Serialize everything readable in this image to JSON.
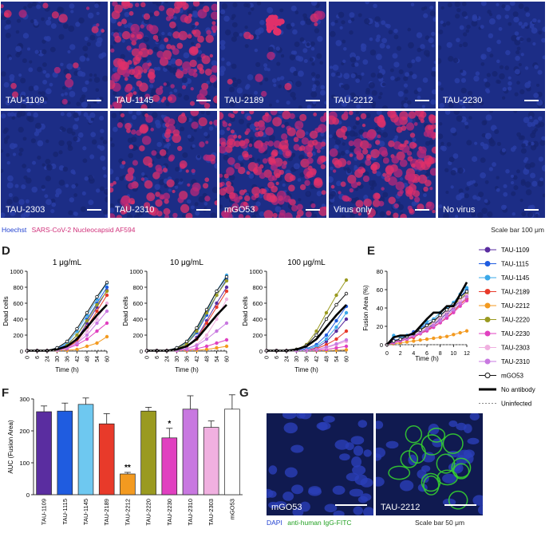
{
  "top_panels": [
    {
      "label": "TAU-1109",
      "infection": 0.08,
      "blob": [
        150,
        30
      ]
    },
    {
      "label": "TAU-1145",
      "infection": 0.75
    },
    {
      "label": "TAU-2189",
      "infection": 0.05,
      "blob": [
        70,
        30
      ]
    },
    {
      "label": "TAU-2212",
      "infection": 0.0
    },
    {
      "label": "TAU-2230",
      "infection": 0.0
    },
    {
      "label": "TAU-2303",
      "infection": 0.0
    },
    {
      "label": "TAU-2310",
      "infection": 0.45
    },
    {
      "label": "mGO53",
      "infection": 0.9
    },
    {
      "label": "Virus only",
      "infection": 0.8
    },
    {
      "label": "No virus",
      "infection": 0.0
    }
  ],
  "legend_top": {
    "hoechst": "Hoechst",
    "nucleocapsid": "SARS-CoV-2 Nucleocapsid AF594",
    "scalebar": "Scale bar 100 μm"
  },
  "colors": {
    "blue_bg": "#1c2d86",
    "red": "#e0306a",
    "legend_blue": "#2040d0",
    "legend_pink": "#d0307a",
    "fitc": "#35d030"
  },
  "panel_letters": {
    "D": "D",
    "E": "E",
    "F": "F",
    "G": "G"
  },
  "legend_series": [
    {
      "name": "TAU-1109",
      "color": "#5a2da0",
      "marker": "filled"
    },
    {
      "name": "TAU-1115",
      "color": "#1f5ce0",
      "marker": "filled"
    },
    {
      "name": "TAU-1145",
      "color": "#3ba8e8",
      "marker": "filled"
    },
    {
      "name": "TAU-2189",
      "color": "#e83a2a",
      "marker": "filled"
    },
    {
      "name": "TAU-2212",
      "color": "#f39a20",
      "marker": "filled"
    },
    {
      "name": "TAU-2220",
      "color": "#9a9a20",
      "marker": "filled"
    },
    {
      "name": "TAU-2230",
      "color": "#e040c0",
      "marker": "filled"
    },
    {
      "name": "TAU-2303",
      "color": "#f0b0e0",
      "marker": "filled"
    },
    {
      "name": "TAU-2310",
      "color": "#c878e0",
      "marker": "filled"
    },
    {
      "name": "mGO53",
      "color": "#111111",
      "marker": "open"
    },
    {
      "name": "No antibody",
      "color": "#000000",
      "marker": "thick"
    },
    {
      "name": "Uninfected",
      "color": "#888888",
      "marker": "dashed"
    }
  ],
  "chart_data": [
    {
      "type": "line",
      "title": "1 μg/mL",
      "xlabel": "Time (h)",
      "ylabel": "Dead cells",
      "ylim": [
        0,
        1000
      ],
      "yticks": [
        0,
        200,
        400,
        600,
        800,
        1000
      ],
      "xticks": [
        "0",
        "6",
        "24",
        "30",
        "36",
        "42",
        "48",
        "54",
        "60"
      ],
      "series": [
        {
          "name": "TAU-1109",
          "values": [
            5,
            5,
            5,
            20,
            60,
            150,
            350,
            550,
            760
          ]
        },
        {
          "name": "TAU-1115",
          "values": [
            5,
            5,
            5,
            30,
            80,
            200,
            400,
            600,
            800
          ]
        },
        {
          "name": "TAU-1145",
          "values": [
            5,
            5,
            5,
            40,
            100,
            250,
            450,
            650,
            850
          ]
        },
        {
          "name": "TAU-2189",
          "values": [
            5,
            5,
            5,
            15,
            50,
            120,
            300,
            500,
            700
          ]
        },
        {
          "name": "TAU-2212",
          "values": [
            5,
            5,
            5,
            5,
            10,
            20,
            60,
            100,
            180
          ]
        },
        {
          "name": "TAU-2220",
          "values": [
            5,
            5,
            5,
            20,
            70,
            200,
            380,
            580,
            750
          ]
        },
        {
          "name": "TAU-2230",
          "values": [
            5,
            5,
            5,
            10,
            30,
            80,
            150,
            250,
            350
          ]
        },
        {
          "name": "TAU-2303",
          "values": [
            5,
            5,
            5,
            10,
            40,
            100,
            250,
            400,
            600
          ]
        },
        {
          "name": "TAU-2310",
          "values": [
            5,
            5,
            5,
            15,
            40,
            100,
            200,
            350,
            500
          ]
        },
        {
          "name": "mGO53",
          "values": [
            5,
            5,
            5,
            40,
            120,
            280,
            480,
            680,
            860
          ]
        },
        {
          "name": "No antibody",
          "values": [
            5,
            5,
            5,
            20,
            60,
            150,
            300,
            450,
            580
          ]
        },
        {
          "name": "Uninfected",
          "values": [
            5,
            5,
            5,
            5,
            5,
            5,
            5,
            10,
            10
          ]
        }
      ]
    },
    {
      "type": "line",
      "title": "10 μg/mL",
      "xlabel": "Time (h)",
      "ylabel": "Dead cells",
      "ylim": [
        0,
        1000
      ],
      "yticks": [
        0,
        200,
        400,
        600,
        800,
        1000
      ],
      "xticks": [
        "0",
        "6",
        "24",
        "30",
        "36",
        "42",
        "48",
        "54",
        "60"
      ],
      "series": [
        {
          "name": "TAU-1109",
          "values": [
            5,
            5,
            5,
            20,
            60,
            170,
            380,
            600,
            800
          ]
        },
        {
          "name": "TAU-1115",
          "values": [
            5,
            5,
            5,
            30,
            90,
            230,
            450,
            700,
            900
          ]
        },
        {
          "name": "TAU-1145",
          "values": [
            5,
            5,
            5,
            40,
            110,
            270,
            500,
            750,
            950
          ]
        },
        {
          "name": "TAU-2189",
          "values": [
            5,
            5,
            5,
            20,
            60,
            150,
            350,
            550,
            750
          ]
        },
        {
          "name": "TAU-2212",
          "values": [
            5,
            5,
            5,
            5,
            5,
            10,
            20,
            40,
            60
          ]
        },
        {
          "name": "TAU-2220",
          "values": [
            5,
            5,
            5,
            30,
            90,
            250,
            480,
            700,
            880
          ]
        },
        {
          "name": "TAU-2230",
          "values": [
            5,
            5,
            5,
            5,
            15,
            30,
            60,
            100,
            140
          ]
        },
        {
          "name": "TAU-2303",
          "values": [
            5,
            5,
            5,
            10,
            30,
            80,
            200,
            400,
            650
          ]
        },
        {
          "name": "TAU-2310",
          "values": [
            5,
            5,
            5,
            10,
            30,
            70,
            150,
            250,
            350
          ]
        },
        {
          "name": "mGO53",
          "values": [
            5,
            5,
            5,
            40,
            120,
            290,
            520,
            750,
            930
          ]
        },
        {
          "name": "No antibody",
          "values": [
            5,
            5,
            5,
            20,
            60,
            150,
            300,
            450,
            580
          ]
        },
        {
          "name": "Uninfected",
          "values": [
            5,
            5,
            5,
            5,
            5,
            5,
            5,
            10,
            10
          ]
        }
      ]
    },
    {
      "type": "line",
      "title": "100 μg/mL",
      "xlabel": "Time (h)",
      "ylabel": "Dead cells",
      "ylim": [
        0,
        1000
      ],
      "yticks": [
        0,
        200,
        400,
        600,
        800,
        1000
      ],
      "xticks": [
        "0",
        "6",
        "24",
        "30",
        "36",
        "42",
        "48",
        "54",
        "60"
      ],
      "series": [
        {
          "name": "TAU-1109",
          "values": [
            5,
            5,
            5,
            5,
            10,
            40,
            120,
            250,
            400
          ]
        },
        {
          "name": "TAU-1115",
          "values": [
            5,
            5,
            5,
            10,
            30,
            80,
            200,
            380,
            560
          ]
        },
        {
          "name": "TAU-1145",
          "values": [
            5,
            5,
            5,
            5,
            20,
            60,
            150,
            300,
            480
          ]
        },
        {
          "name": "TAU-2189",
          "values": [
            5,
            5,
            5,
            5,
            10,
            30,
            80,
            150,
            250
          ]
        },
        {
          "name": "TAU-2212",
          "values": [
            5,
            5,
            5,
            5,
            5,
            5,
            5,
            10,
            15
          ]
        },
        {
          "name": "TAU-2220",
          "values": [
            5,
            5,
            5,
            20,
            80,
            250,
            480,
            700,
            890
          ]
        },
        {
          "name": "TAU-2230",
          "values": [
            5,
            5,
            5,
            5,
            5,
            10,
            20,
            40,
            60
          ]
        },
        {
          "name": "TAU-2303",
          "values": [
            5,
            5,
            5,
            5,
            10,
            20,
            40,
            80,
            120
          ]
        },
        {
          "name": "TAU-2310",
          "values": [
            5,
            5,
            5,
            5,
            10,
            20,
            50,
            90,
            140
          ]
        },
        {
          "name": "mGO53",
          "values": [
            5,
            5,
            5,
            20,
            70,
            200,
            400,
            580,
            720
          ]
        },
        {
          "name": "No antibody",
          "values": [
            5,
            5,
            5,
            20,
            60,
            150,
            300,
            450,
            580
          ]
        },
        {
          "name": "Uninfected",
          "values": [
            5,
            5,
            5,
            5,
            5,
            5,
            5,
            10,
            10
          ]
        }
      ]
    },
    {
      "type": "line",
      "title": "",
      "xlabel": "Time (h)",
      "ylabel": "Fusion Area (%)",
      "ylim": [
        0,
        80
      ],
      "yticks": [
        0,
        20,
        40,
        60,
        80
      ],
      "xticks": [
        "0",
        "2",
        "4",
        "6",
        "8",
        "10",
        "12"
      ],
      "x": [
        0,
        1,
        2,
        3,
        4,
        5,
        6,
        7,
        8,
        9,
        10,
        11,
        12
      ],
      "series": [
        {
          "name": "TAU-1109",
          "values": [
            0,
            3,
            5,
            8,
            10,
            14,
            18,
            22,
            28,
            34,
            40,
            48,
            55
          ]
        },
        {
          "name": "TAU-1115",
          "values": [
            0,
            5,
            6,
            10,
            14,
            18,
            22,
            26,
            32,
            38,
            44,
            52,
            60
          ]
        },
        {
          "name": "TAU-1145",
          "values": [
            0,
            10,
            8,
            10,
            12,
            18,
            25,
            28,
            35,
            40,
            46,
            55,
            62
          ]
        },
        {
          "name": "TAU-2189",
          "values": [
            0,
            2,
            4,
            6,
            8,
            12,
            16,
            20,
            24,
            30,
            36,
            44,
            50
          ]
        },
        {
          "name": "TAU-2212",
          "values": [
            0,
            1,
            2,
            3,
            4,
            5,
            6,
            7,
            8,
            9,
            11,
            13,
            15
          ]
        },
        {
          "name": "TAU-2220",
          "values": [
            0,
            3,
            6,
            9,
            12,
            16,
            20,
            25,
            30,
            36,
            42,
            50,
            56
          ]
        },
        {
          "name": "TAU-2230",
          "values": [
            0,
            2,
            4,
            6,
            9,
            12,
            15,
            19,
            24,
            29,
            35,
            42,
            48
          ]
        },
        {
          "name": "TAU-2303",
          "values": [
            0,
            4,
            6,
            8,
            10,
            14,
            18,
            24,
            30,
            36,
            42,
            48,
            54
          ]
        },
        {
          "name": "TAU-2310",
          "values": [
            0,
            3,
            5,
            7,
            10,
            13,
            17,
            21,
            26,
            32,
            38,
            45,
            52
          ]
        },
        {
          "name": "mGO53",
          "values": [
            0,
            4,
            6,
            9,
            12,
            16,
            21,
            26,
            32,
            38,
            44,
            52,
            58
          ]
        },
        {
          "name": "No antibody",
          "values": [
            0,
            8,
            10,
            10,
            12,
            20,
            28,
            35,
            35,
            42,
            42,
            55,
            68
          ]
        },
        {
          "name": "Uninfected",
          "values": [
            0,
            0,
            0,
            0,
            0,
            0,
            0,
            0,
            0,
            0,
            0,
            0,
            0
          ]
        }
      ]
    },
    {
      "type": "bar",
      "title": "",
      "xlabel": "",
      "ylabel": "AUC (Fusion Area)",
      "ylim": [
        0,
        300
      ],
      "yticks": [
        0,
        100,
        200,
        300
      ],
      "categories": [
        "TAU-1109",
        "TAU-1115",
        "TAU-1145",
        "TAU-2189",
        "TAU-2212",
        "TAU-2220",
        "TAU-2230",
        "TAU-2310",
        "TAU-2303",
        "mGO53"
      ],
      "values": [
        260,
        262,
        283,
        222,
        65,
        262,
        178,
        268,
        211,
        268
      ],
      "errors": [
        18,
        25,
        20,
        32,
        5,
        12,
        30,
        42,
        20,
        45
      ],
      "colors": [
        "#5a2da0",
        "#1f5ce0",
        "#6ec8f0",
        "#e83a2a",
        "#f39a20",
        "#9a9a20",
        "#e040c0",
        "#c878e0",
        "#f0b0e0",
        "#ffffff"
      ],
      "annotations": [
        {
          "category": "TAU-2212",
          "text": "**"
        },
        {
          "category": "TAU-2230",
          "text": "*"
        }
      ]
    }
  ],
  "panel_g": {
    "images": [
      {
        "label": "mGO53"
      },
      {
        "label": "TAU-2212"
      }
    ],
    "dapi": "DAPI",
    "fitc": "anti-human IgG-FITC",
    "scalebar": "Scale bar 50 μm"
  }
}
